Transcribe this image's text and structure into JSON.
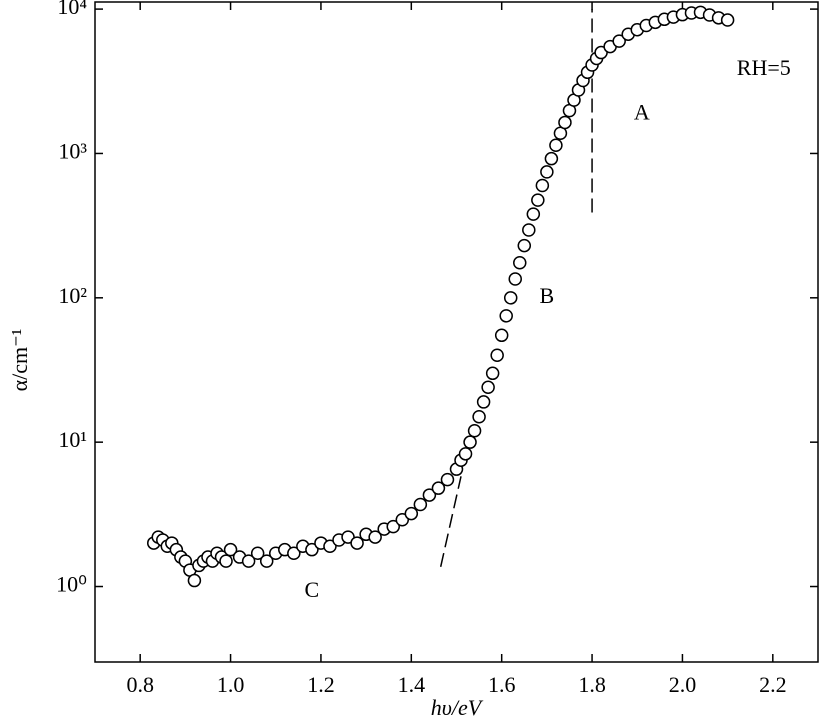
{
  "chart_data": {
    "type": "scatter",
    "x_label": "hυ/eV",
    "y_label": "α/cm⁻¹",
    "x": [
      0.83,
      0.84,
      0.85,
      0.86,
      0.87,
      0.88,
      0.89,
      0.9,
      0.91,
      0.92,
      0.93,
      0.94,
      0.95,
      0.96,
      0.97,
      0.98,
      0.99,
      1.0,
      1.02,
      1.04,
      1.06,
      1.08,
      1.1,
      1.12,
      1.14,
      1.16,
      1.18,
      1.2,
      1.22,
      1.24,
      1.26,
      1.28,
      1.3,
      1.32,
      1.34,
      1.36,
      1.38,
      1.4,
      1.42,
      1.44,
      1.46,
      1.48,
      1.5,
      1.51,
      1.52,
      1.53,
      1.54,
      1.55,
      1.56,
      1.57,
      1.58,
      1.59,
      1.6,
      1.61,
      1.62,
      1.63,
      1.64,
      1.65,
      1.66,
      1.67,
      1.68,
      1.69,
      1.7,
      1.71,
      1.72,
      1.73,
      1.74,
      1.75,
      1.76,
      1.77,
      1.78,
      1.79,
      1.8,
      1.81,
      1.82,
      1.84,
      1.86,
      1.88,
      1.9,
      1.92,
      1.94,
      1.96,
      1.98,
      2.0,
      2.02,
      2.04,
      2.06,
      2.08,
      2.1
    ],
    "values": [
      2.0,
      2.2,
      2.1,
      1.9,
      2.0,
      1.8,
      1.6,
      1.5,
      1.3,
      1.1,
      1.4,
      1.5,
      1.6,
      1.5,
      1.7,
      1.6,
      1.5,
      1.8,
      1.6,
      1.5,
      1.7,
      1.5,
      1.7,
      1.8,
      1.7,
      1.9,
      1.8,
      2.0,
      1.9,
      2.1,
      2.2,
      2.0,
      2.3,
      2.2,
      2.5,
      2.6,
      2.9,
      3.2,
      3.7,
      4.3,
      4.8,
      5.5,
      6.5,
      7.5,
      8.3,
      10,
      12,
      15,
      19,
      24,
      30,
      40,
      55,
      75,
      100,
      135,
      175,
      230,
      295,
      380,
      475,
      600,
      745,
      920,
      1140,
      1380,
      1640,
      1980,
      2340,
      2750,
      3200,
      3650,
      4100,
      4550,
      5000,
      5500,
      6000,
      6700,
      7200,
      7700,
      8100,
      8500,
      8800,
      9150,
      9400,
      9500,
      9100,
      8700,
      8400
    ],
    "color": "#000000",
    "xlim": [
      0.7,
      2.3
    ],
    "xticks": [
      0.8,
      {
        "value": 1.0,
        "label": "1.0"
      },
      1.2,
      1.4,
      1.6,
      1.8,
      {
        "value": 2.0,
        "label": "2.0"
      },
      2.2
    ],
    "ylim": [
      0.3,
      11200
    ],
    "y_log": true,
    "yticks": [
      {
        "value": 1,
        "label": "10⁰"
      },
      {
        "value": 10,
        "label": "10¹"
      },
      {
        "value": 100,
        "label": "10²"
      },
      {
        "value": 1000,
        "label": "10³"
      },
      {
        "value": 10000,
        "label": "10⁴"
      }
    ],
    "annotations": [
      {
        "text": "A",
        "x": 1.91,
        "y": 1860
      },
      {
        "text": "B",
        "x": 1.7,
        "y": 100
      },
      {
        "text": "C",
        "x": 1.18,
        "y": 0.92
      },
      {
        "text": "RH=5",
        "x": 2.18,
        "y": 3800
      }
    ],
    "guides": [
      {
        "x": [
          1.8,
          1.8
        ],
        "y": [
          390,
          10000
        ]
      },
      {
        "x": [
          1.465,
          1.51
        ],
        "y": [
          1.37,
          5.8
        ]
      }
    ]
  }
}
